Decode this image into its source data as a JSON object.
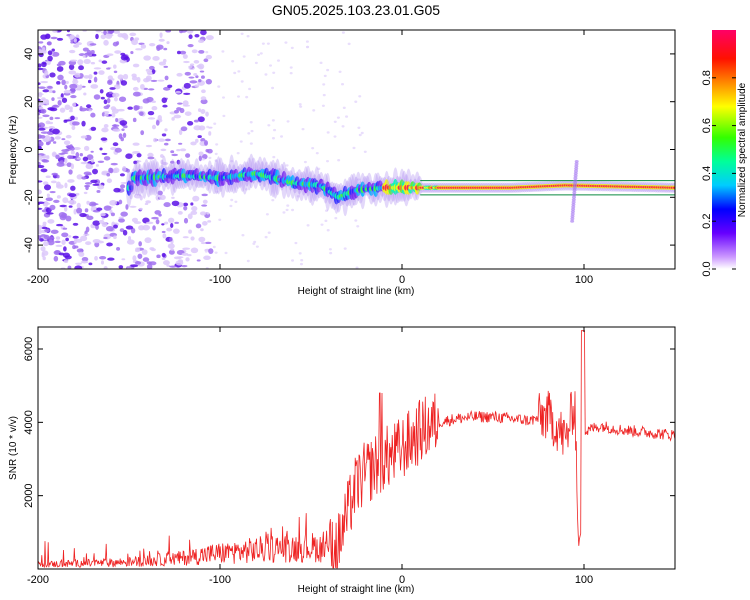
{
  "figure": {
    "title": "GN05.2025.103.23.01.G05"
  },
  "colors": {
    "snr_line": "#ee2222",
    "ridge": "#e0204a",
    "background": "#ffffff",
    "axis": "#000000"
  },
  "chart_data": [
    {
      "type": "heatmap",
      "title": "GN05.2025.103.23.01.G05",
      "xlabel": "Height of straight line (km)",
      "ylabel": "Frequency (Hz)",
      "xlim": [
        -200,
        150
      ],
      "ylim": [
        -50,
        50
      ],
      "x_ticks": [
        -200,
        -100,
        0,
        100
      ],
      "y_ticks": [
        -40,
        -20,
        0,
        20,
        40
      ],
      "colormap": "rainbow (purple-blue-cyan-green-yellow-red-magenta)",
      "dominant_line": [
        {
          "x": -148,
          "y": -12
        },
        {
          "x": -120,
          "y": -11
        },
        {
          "x": -100,
          "y": -12
        },
        {
          "x": -80,
          "y": -10
        },
        {
          "x": -60,
          "y": -14
        },
        {
          "x": -45,
          "y": -15
        },
        {
          "x": -35,
          "y": -20
        },
        {
          "x": -25,
          "y": -17
        },
        {
          "x": -10,
          "y": -16
        },
        {
          "x": 0,
          "y": -16
        },
        {
          "x": 20,
          "y": -16
        },
        {
          "x": 60,
          "y": -16
        },
        {
          "x": 90,
          "y": -15
        },
        {
          "x": 150,
          "y": -16
        }
      ],
      "colorbar": {
        "label": "Normalized spectral amplitude",
        "range": [
          0,
          1
        ],
        "ticks": [
          "0.0",
          "0.2",
          "0.4",
          "0.6",
          "0.8"
        ]
      },
      "grid": false
    },
    {
      "type": "line",
      "title": "",
      "xlabel": "Height of straight line (km)",
      "ylabel": "SNR (10 * v/v)",
      "xlim": [
        -200,
        150
      ],
      "ylim": [
        0,
        6600
      ],
      "x_ticks": [
        -200,
        -100,
        0,
        100
      ],
      "y_ticks": [
        2000,
        4000,
        6000
      ],
      "series": [
        {
          "x": [
            -200,
            -180,
            -160,
            -140,
            -120,
            -110,
            -100,
            -90,
            -80,
            -70,
            -60,
            -50,
            -40,
            -35,
            -30,
            -25,
            -20,
            -15,
            -10,
            -5,
            0,
            5,
            10,
            15,
            20,
            30,
            40,
            50,
            60,
            70,
            75,
            80,
            85,
            90,
            95,
            97,
            100,
            105,
            110,
            120,
            130,
            140,
            150
          ],
          "values": [
            120,
            150,
            170,
            220,
            300,
            380,
            430,
            470,
            520,
            560,
            580,
            600,
            550,
            650,
            1500,
            2300,
            2600,
            2800,
            3000,
            3100,
            3300,
            3500,
            3750,
            3900,
            4000,
            4100,
            4150,
            4150,
            4100,
            4050,
            4100,
            4200,
            3900,
            3500,
            4600,
            600,
            3700,
            3850,
            3900,
            3800,
            3750,
            3700,
            3650
          ]
        }
      ],
      "grid": false
    }
  ]
}
